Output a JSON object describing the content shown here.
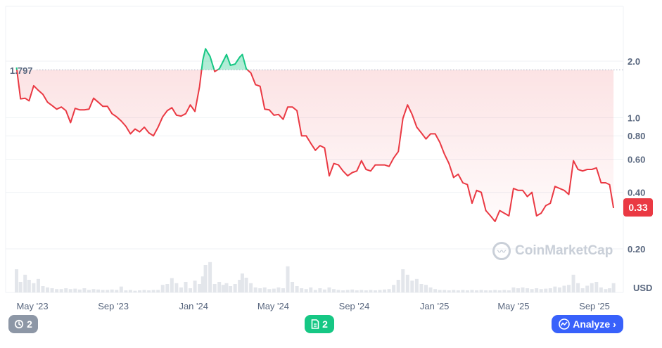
{
  "colors": {
    "down": "#ea3943",
    "up": "#16c784",
    "accent": "#3861fb",
    "grey": "#8d97a6"
  },
  "chart_data": {
    "type": "line",
    "scale": "log",
    "title": "",
    "currency_label": "USD",
    "reference_label": "1.797",
    "reference_value": 1.797,
    "current_label": "0.33",
    "current_value": 0.33,
    "y_ticks": [
      {
        "label": "2.0",
        "value": 2.0
      },
      {
        "label": "1.0",
        "value": 1.0
      },
      {
        "label": "0.80",
        "value": 0.8
      },
      {
        "label": "0.60",
        "value": 0.6
      },
      {
        "label": "0.40",
        "value": 0.4
      },
      {
        "label": "0.20",
        "value": 0.2
      }
    ],
    "x_ticks": [
      {
        "label": "May '23",
        "date": "2023-05-01"
      },
      {
        "label": "Sep '23",
        "date": "2023-09-01"
      },
      {
        "label": "Jan '24",
        "date": "2024-01-01"
      },
      {
        "label": "May '24",
        "date": "2024-05-01"
      },
      {
        "label": "Sep '24",
        "date": "2024-09-01"
      },
      {
        "label": "Jan '25",
        "date": "2025-01-01"
      },
      {
        "label": "May '25",
        "date": "2025-05-01"
      },
      {
        "label": "Sep '25",
        "date": "2025-09-01"
      }
    ],
    "series": [
      {
        "points": [
          [
            "2023-04-07",
            1.85
          ],
          [
            "2023-04-13",
            1.26
          ],
          [
            "2023-04-20",
            1.27
          ],
          [
            "2023-04-26",
            1.23
          ],
          [
            "2023-05-03",
            1.48
          ],
          [
            "2023-05-10",
            1.4
          ],
          [
            "2023-05-17",
            1.33
          ],
          [
            "2023-05-24",
            1.21
          ],
          [
            "2023-05-31",
            1.16
          ],
          [
            "2023-06-07",
            1.11
          ],
          [
            "2023-06-14",
            1.14
          ],
          [
            "2023-06-21",
            1.09
          ],
          [
            "2023-06-28",
            0.94
          ],
          [
            "2023-07-05",
            1.12
          ],
          [
            "2023-07-12",
            1.1
          ],
          [
            "2023-07-19",
            1.1
          ],
          [
            "2023-07-26",
            1.11
          ],
          [
            "2023-08-02",
            1.27
          ],
          [
            "2023-08-09",
            1.21
          ],
          [
            "2023-08-16",
            1.15
          ],
          [
            "2023-08-23",
            1.15
          ],
          [
            "2023-08-30",
            1.05
          ],
          [
            "2023-09-06",
            1.01
          ],
          [
            "2023-09-13",
            0.96
          ],
          [
            "2023-09-20",
            0.9
          ],
          [
            "2023-09-27",
            0.82
          ],
          [
            "2023-10-04",
            0.87
          ],
          [
            "2023-10-11",
            0.84
          ],
          [
            "2023-10-18",
            0.89
          ],
          [
            "2023-10-25",
            0.83
          ],
          [
            "2023-11-01",
            0.8
          ],
          [
            "2023-11-08",
            0.89
          ],
          [
            "2023-11-15",
            1.01
          ],
          [
            "2023-11-22",
            1.09
          ],
          [
            "2023-11-29",
            1.13
          ],
          [
            "2023-12-06",
            1.03
          ],
          [
            "2023-12-13",
            1.02
          ],
          [
            "2023-12-20",
            1.05
          ],
          [
            "2023-12-27",
            1.17
          ],
          [
            "2024-01-03",
            1.08
          ],
          [
            "2024-01-10",
            1.46
          ],
          [
            "2024-01-15",
            2.03
          ],
          [
            "2024-01-19",
            2.33
          ],
          [
            "2024-01-26",
            2.12
          ],
          [
            "2024-02-02",
            1.76
          ],
          [
            "2024-02-09",
            1.82
          ],
          [
            "2024-02-15",
            2.0
          ],
          [
            "2024-02-20",
            2.17
          ],
          [
            "2024-02-26",
            1.9
          ],
          [
            "2024-03-04",
            1.93
          ],
          [
            "2024-03-11",
            2.1
          ],
          [
            "2024-03-15",
            2.17
          ],
          [
            "2024-03-21",
            1.82
          ],
          [
            "2024-03-28",
            1.73
          ],
          [
            "2024-04-04",
            1.5
          ],
          [
            "2024-04-11",
            1.47
          ],
          [
            "2024-04-18",
            1.11
          ],
          [
            "2024-04-25",
            1.1
          ],
          [
            "2024-05-02",
            1.03
          ],
          [
            "2024-05-09",
            1.04
          ],
          [
            "2024-05-16",
            0.98
          ],
          [
            "2024-05-23",
            1.14
          ],
          [
            "2024-05-30",
            1.14
          ],
          [
            "2024-06-06",
            1.09
          ],
          [
            "2024-06-13",
            0.8
          ],
          [
            "2024-06-20",
            0.8
          ],
          [
            "2024-06-27",
            0.73
          ],
          [
            "2024-07-04",
            0.67
          ],
          [
            "2024-07-11",
            0.71
          ],
          [
            "2024-07-18",
            0.69
          ],
          [
            "2024-07-25",
            0.49
          ],
          [
            "2024-08-01",
            0.57
          ],
          [
            "2024-08-08",
            0.56
          ],
          [
            "2024-08-15",
            0.52
          ],
          [
            "2024-08-22",
            0.49
          ],
          [
            "2024-08-29",
            0.51
          ],
          [
            "2024-09-05",
            0.52
          ],
          [
            "2024-09-12",
            0.59
          ],
          [
            "2024-09-19",
            0.53
          ],
          [
            "2024-09-26",
            0.52
          ],
          [
            "2024-10-03",
            0.56
          ],
          [
            "2024-10-10",
            0.56
          ],
          [
            "2024-10-17",
            0.56
          ],
          [
            "2024-10-24",
            0.55
          ],
          [
            "2024-10-31",
            0.61
          ],
          [
            "2024-11-07",
            0.66
          ],
          [
            "2024-11-14",
            0.99
          ],
          [
            "2024-11-21",
            1.17
          ],
          [
            "2024-11-28",
            1.04
          ],
          [
            "2024-12-05",
            0.89
          ],
          [
            "2024-12-12",
            0.83
          ],
          [
            "2024-12-19",
            0.77
          ],
          [
            "2024-12-26",
            0.82
          ],
          [
            "2025-01-02",
            0.82
          ],
          [
            "2025-01-09",
            0.74
          ],
          [
            "2025-01-16",
            0.64
          ],
          [
            "2025-01-23",
            0.57
          ],
          [
            "2025-01-30",
            0.48
          ],
          [
            "2025-02-06",
            0.5
          ],
          [
            "2025-02-13",
            0.45
          ],
          [
            "2025-02-20",
            0.44
          ],
          [
            "2025-02-27",
            0.35
          ],
          [
            "2025-03-06",
            0.41
          ],
          [
            "2025-03-13",
            0.4
          ],
          [
            "2025-03-20",
            0.32
          ],
          [
            "2025-03-27",
            0.3
          ],
          [
            "2025-04-03",
            0.28
          ],
          [
            "2025-04-10",
            0.32
          ],
          [
            "2025-04-17",
            0.31
          ],
          [
            "2025-04-24",
            0.3
          ],
          [
            "2025-05-01",
            0.42
          ],
          [
            "2025-05-08",
            0.41
          ],
          [
            "2025-05-15",
            0.41
          ],
          [
            "2025-05-22",
            0.38
          ],
          [
            "2025-05-29",
            0.4
          ],
          [
            "2025-06-05",
            0.3
          ],
          [
            "2025-06-12",
            0.31
          ],
          [
            "2025-06-19",
            0.34
          ],
          [
            "2025-06-26",
            0.35
          ],
          [
            "2025-07-03",
            0.43
          ],
          [
            "2025-07-10",
            0.42
          ],
          [
            "2025-07-17",
            0.41
          ],
          [
            "2025-07-24",
            0.39
          ],
          [
            "2025-07-31",
            0.59
          ],
          [
            "2025-08-07",
            0.53
          ],
          [
            "2025-08-14",
            0.52
          ],
          [
            "2025-08-21",
            0.53
          ],
          [
            "2025-08-28",
            0.53
          ],
          [
            "2025-09-04",
            0.54
          ],
          [
            "2025-09-11",
            0.45
          ],
          [
            "2025-09-18",
            0.45
          ],
          [
            "2025-09-24",
            0.44
          ],
          [
            "2025-09-30",
            0.33
          ]
        ]
      }
    ],
    "volume": [
      [
        "2023-04-07",
        0.55
      ],
      [
        "2023-04-13",
        0.25
      ],
      [
        "2023-04-20",
        0.42
      ],
      [
        "2023-04-26",
        0.3
      ],
      [
        "2023-05-03",
        0.22
      ],
      [
        "2023-05-10",
        0.32
      ],
      [
        "2023-05-17",
        0.15
      ],
      [
        "2023-05-24",
        0.12
      ],
      [
        "2023-05-31",
        0.1
      ],
      [
        "2023-06-07",
        0.08
      ],
      [
        "2023-06-14",
        0.08
      ],
      [
        "2023-06-21",
        0.1
      ],
      [
        "2023-06-28",
        0.08
      ],
      [
        "2023-07-05",
        0.09
      ],
      [
        "2023-07-12",
        0.07
      ],
      [
        "2023-07-19",
        0.1
      ],
      [
        "2023-07-26",
        0.06
      ],
      [
        "2023-08-02",
        0.08
      ],
      [
        "2023-08-09",
        0.07
      ],
      [
        "2023-08-16",
        0.06
      ],
      [
        "2023-08-23",
        0.06
      ],
      [
        "2023-08-30",
        0.07
      ],
      [
        "2023-09-06",
        0.06
      ],
      [
        "2023-09-13",
        0.14
      ],
      [
        "2023-09-20",
        0.05
      ],
      [
        "2023-09-27",
        0.06
      ],
      [
        "2023-10-04",
        0.04
      ],
      [
        "2023-10-11",
        0.05
      ],
      [
        "2023-10-18",
        0.06
      ],
      [
        "2023-10-25",
        0.05
      ],
      [
        "2023-11-01",
        0.06
      ],
      [
        "2023-11-08",
        0.06
      ],
      [
        "2023-11-15",
        0.18
      ],
      [
        "2023-11-22",
        0.2
      ],
      [
        "2023-11-29",
        0.34
      ],
      [
        "2023-12-06",
        0.22
      ],
      [
        "2023-12-13",
        0.12
      ],
      [
        "2023-12-20",
        0.25
      ],
      [
        "2023-12-27",
        0.1
      ],
      [
        "2024-01-03",
        0.28
      ],
      [
        "2024-01-10",
        0.2
      ],
      [
        "2024-01-15",
        0.38
      ],
      [
        "2024-01-19",
        0.65
      ],
      [
        "2024-01-26",
        0.72
      ],
      [
        "2024-02-02",
        0.2
      ],
      [
        "2024-02-09",
        0.25
      ],
      [
        "2024-02-15",
        0.18
      ],
      [
        "2024-02-20",
        0.22
      ],
      [
        "2024-02-26",
        0.15
      ],
      [
        "2024-03-04",
        0.2
      ],
      [
        "2024-03-11",
        0.3
      ],
      [
        "2024-03-15",
        0.45
      ],
      [
        "2024-03-21",
        0.35
      ],
      [
        "2024-03-28",
        0.22
      ],
      [
        "2024-04-04",
        0.12
      ],
      [
        "2024-04-11",
        0.1
      ],
      [
        "2024-04-18",
        0.12
      ],
      [
        "2024-04-25",
        0.08
      ],
      [
        "2024-05-02",
        0.09
      ],
      [
        "2024-05-09",
        0.12
      ],
      [
        "2024-05-16",
        0.1
      ],
      [
        "2024-05-23",
        0.62
      ],
      [
        "2024-05-30",
        0.25
      ],
      [
        "2024-06-06",
        0.15
      ],
      [
        "2024-06-13",
        0.1
      ],
      [
        "2024-06-20",
        0.08
      ],
      [
        "2024-06-27",
        0.12
      ],
      [
        "2024-07-04",
        0.06
      ],
      [
        "2024-07-11",
        0.1
      ],
      [
        "2024-07-18",
        0.07
      ],
      [
        "2024-07-25",
        0.12
      ],
      [
        "2024-08-01",
        0.08
      ],
      [
        "2024-08-08",
        0.06
      ],
      [
        "2024-08-15",
        0.05
      ],
      [
        "2024-08-22",
        0.06
      ],
      [
        "2024-08-29",
        0.07
      ],
      [
        "2024-09-05",
        0.05
      ],
      [
        "2024-09-12",
        0.06
      ],
      [
        "2024-09-19",
        0.05
      ],
      [
        "2024-09-26",
        0.06
      ],
      [
        "2024-10-03",
        0.05
      ],
      [
        "2024-10-10",
        0.06
      ],
      [
        "2024-10-17",
        0.07
      ],
      [
        "2024-10-24",
        0.08
      ],
      [
        "2024-10-31",
        0.18
      ],
      [
        "2024-11-07",
        0.3
      ],
      [
        "2024-11-14",
        0.55
      ],
      [
        "2024-11-21",
        0.42
      ],
      [
        "2024-11-28",
        0.28
      ],
      [
        "2024-12-05",
        0.32
      ],
      [
        "2024-12-12",
        0.2
      ],
      [
        "2024-12-19",
        0.18
      ],
      [
        "2024-12-26",
        0.12
      ],
      [
        "2025-01-02",
        0.08
      ],
      [
        "2025-01-09",
        0.06
      ],
      [
        "2025-01-16",
        0.06
      ],
      [
        "2025-01-23",
        0.05
      ],
      [
        "2025-01-30",
        0.06
      ],
      [
        "2025-02-06",
        0.05
      ],
      [
        "2025-02-13",
        0.06
      ],
      [
        "2025-02-20",
        0.05
      ],
      [
        "2025-02-27",
        0.06
      ],
      [
        "2025-03-06",
        0.05
      ],
      [
        "2025-03-13",
        0.06
      ],
      [
        "2025-03-20",
        0.05
      ],
      [
        "2025-03-27",
        0.05
      ],
      [
        "2025-04-03",
        0.06
      ],
      [
        "2025-04-10",
        0.05
      ],
      [
        "2025-04-17",
        0.06
      ],
      [
        "2025-04-24",
        0.05
      ],
      [
        "2025-05-01",
        0.12
      ],
      [
        "2025-05-08",
        0.1
      ],
      [
        "2025-05-15",
        0.12
      ],
      [
        "2025-05-22",
        0.1
      ],
      [
        "2025-05-29",
        0.08
      ],
      [
        "2025-06-05",
        0.1
      ],
      [
        "2025-06-12",
        0.08
      ],
      [
        "2025-06-19",
        0.09
      ],
      [
        "2025-06-26",
        0.1
      ],
      [
        "2025-07-03",
        0.14
      ],
      [
        "2025-07-10",
        0.12
      ],
      [
        "2025-07-17",
        0.16
      ],
      [
        "2025-07-24",
        0.18
      ],
      [
        "2025-07-31",
        0.42
      ],
      [
        "2025-08-07",
        0.22
      ],
      [
        "2025-08-14",
        0.1
      ],
      [
        "2025-08-21",
        0.16
      ],
      [
        "2025-08-28",
        0.22
      ],
      [
        "2025-09-04",
        0.25
      ],
      [
        "2025-09-11",
        0.12
      ],
      [
        "2025-09-18",
        0.08
      ],
      [
        "2025-09-24",
        0.1
      ],
      [
        "2025-09-30",
        0.22
      ]
    ],
    "grid": true
  },
  "watermark": {
    "text": "CoinMarketCap"
  },
  "badges": {
    "history_count": "2",
    "notes_count": "2"
  },
  "analyze_button": {
    "label": "Analyze"
  }
}
